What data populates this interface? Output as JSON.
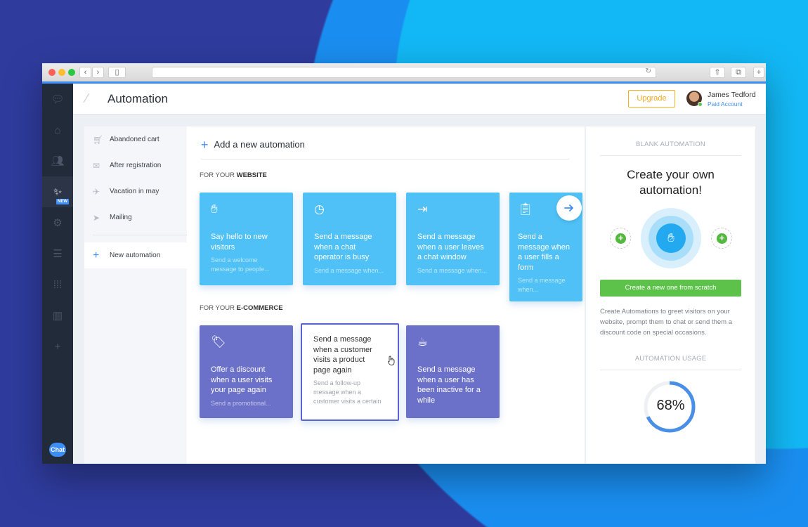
{
  "header": {
    "title": "Automation",
    "upgrade": "Upgrade",
    "user_name": "James Tedford",
    "account": "Paid Account"
  },
  "sidebar": {
    "new_badge": "NEW",
    "chat_label": "Chat"
  },
  "submenu": {
    "items": [
      {
        "icon": "cart-icon",
        "label": "Abandoned cart"
      },
      {
        "icon": "mail-icon",
        "label": "After registration"
      },
      {
        "icon": "plane-icon",
        "label": "Vacation in may"
      },
      {
        "icon": "send-icon",
        "label": "Mailing"
      }
    ],
    "new_label": "New automation"
  },
  "main": {
    "add_new": "Add a new automation",
    "website_prefix": "FOR YOUR ",
    "website_bold": "WEBSITE",
    "ecommerce_prefix": "FOR YOUR ",
    "ecommerce_bold": "E-COMMERCE",
    "website_cards": [
      {
        "icon": "hand-icon",
        "title": "Say hello to new visitors",
        "desc": "Send a welcome message to people..."
      },
      {
        "icon": "clock-icon",
        "title": "Send a message when a chat operator is busy",
        "desc": "Send a message when..."
      },
      {
        "icon": "exit-icon",
        "title": "Send a message when a user leaves a chat window",
        "desc": "Send a message when..."
      },
      {
        "icon": "clipboard-icon",
        "title": "Send a message when a user fills a form",
        "desc": "Send a message when..."
      }
    ],
    "ecommerce_cards": [
      {
        "icon": "tag-icon",
        "title": "Offer a discount when a user visits your page again",
        "desc": "Send a promotional..."
      },
      {
        "title": "Send a message when a customer visits a product page again",
        "desc": "Send a follow-up message when a customer visits a certain"
      },
      {
        "icon": "coffee-icon",
        "title": "Send a message when a user has been inactive for a while",
        "desc": ""
      }
    ]
  },
  "right": {
    "blank_heading": "BLANK AUTOMATION",
    "big_title": "Create your own automation!",
    "create_button": "Create a new one from scratch",
    "description": "Create Automations to greet visitors on your website, prompt them to chat or send them a discount code on special occasions.",
    "usage_heading": "AUTOMATION USAGE",
    "usage_percent": "68%",
    "usage_value": 68
  },
  "colors": {
    "accent": "#3e8ef7",
    "website_card": "#4fc1f7",
    "ecommerce_card": "#6b70c8",
    "green": "#5cc24a",
    "upgrade": "#f5b21b"
  }
}
